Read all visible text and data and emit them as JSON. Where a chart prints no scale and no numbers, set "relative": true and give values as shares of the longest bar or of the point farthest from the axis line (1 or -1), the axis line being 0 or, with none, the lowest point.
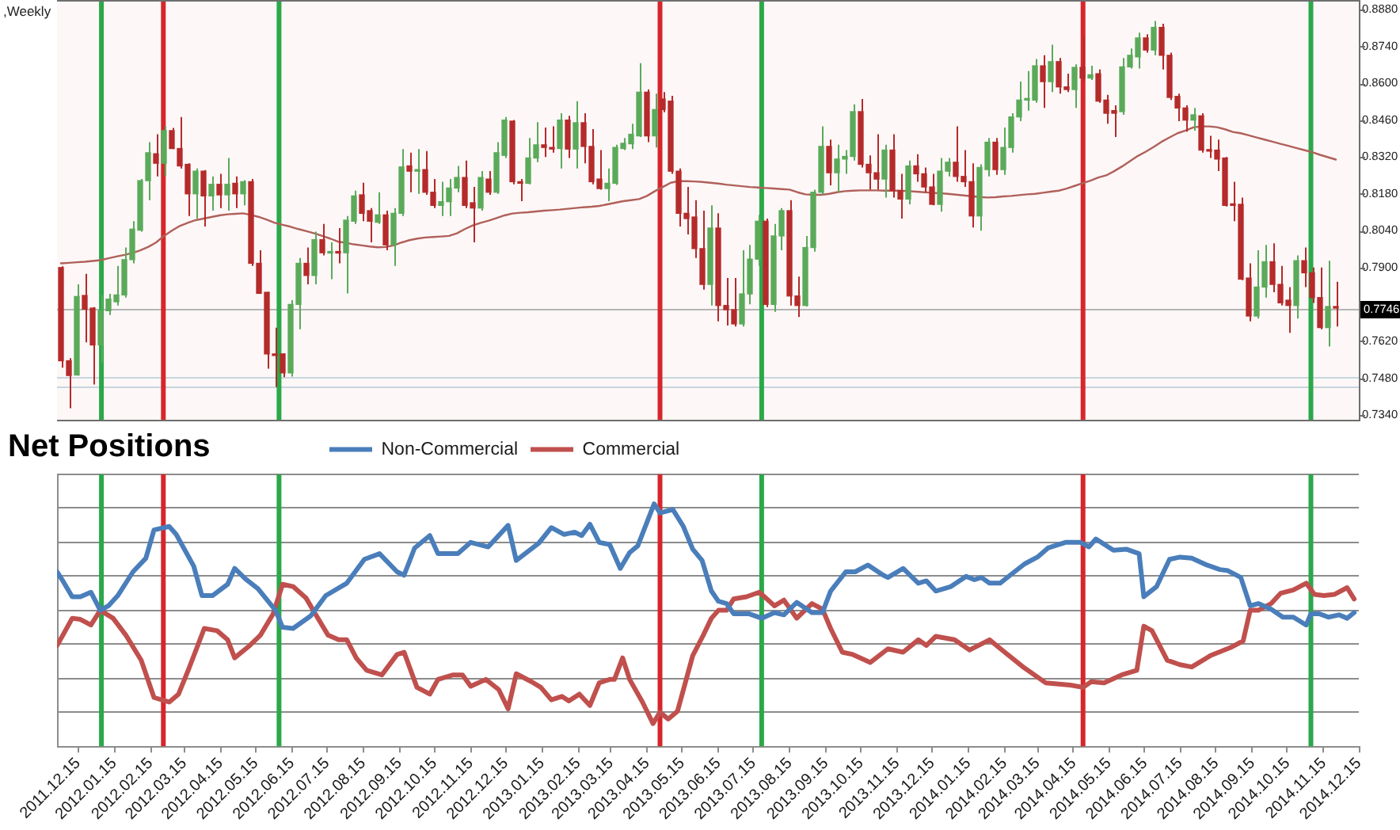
{
  "chart_data": [
    {
      "type": "candlestick",
      "title": ",Weekly",
      "tick_labels": "y",
      "categories": [
        null,
        null,
        null,
        null,
        null,
        null,
        null,
        null,
        null,
        null,
        null,
        null,
        null,
        null,
        null,
        null,
        null,
        null,
        null,
        null,
        null,
        null,
        null,
        null,
        null,
        null,
        null,
        null,
        null,
        null,
        null,
        null,
        null,
        null,
        null,
        null,
        null,
        null,
        null,
        null,
        null,
        null,
        null,
        null,
        null,
        null,
        null,
        null,
        null,
        null,
        null,
        null,
        null,
        null,
        null,
        null,
        null,
        null,
        null,
        null,
        null,
        null,
        null,
        null,
        null,
        null,
        null,
        null,
        null,
        null,
        null,
        null,
        null,
        null,
        null,
        null,
        null,
        null,
        null,
        null,
        null,
        null,
        null,
        null,
        null,
        null,
        null,
        null,
        null,
        null,
        null,
        null,
        null,
        null,
        null,
        null,
        null,
        null,
        null,
        null,
        null,
        null,
        null,
        null,
        null,
        null,
        null,
        null,
        null,
        null,
        null,
        null,
        null,
        null,
        null,
        null,
        null,
        null,
        null,
        null,
        null,
        null,
        null,
        null,
        null,
        null,
        null,
        null,
        null,
        null,
        null,
        null,
        null,
        null,
        null,
        null,
        null,
        null,
        null,
        null,
        null,
        null,
        null,
        null,
        null,
        null,
        null,
        null,
        null,
        null,
        null,
        null,
        null,
        null,
        null,
        null,
        null,
        null,
        null,
        null,
        null,
        null
      ],
      "ohlc": [
        [
          0.79,
          0.7905,
          0.752,
          0.7546
        ],
        [
          0.7546,
          0.7556,
          0.7366,
          0.749
        ],
        [
          0.7492,
          0.7836,
          0.749,
          0.779
        ],
        [
          0.7794,
          0.7876,
          0.7616,
          0.7742
        ],
        [
          0.7746,
          0.775,
          0.7456,
          0.7606
        ],
        [
          0.7606,
          0.7796,
          0.7536,
          0.7736
        ],
        [
          0.7736,
          0.78,
          0.772,
          0.778
        ],
        [
          0.777,
          0.7906,
          0.7756,
          0.7796
        ],
        [
          0.7796,
          0.7976,
          0.7786,
          0.793
        ],
        [
          0.793,
          0.8076,
          0.7916,
          0.8046
        ],
        [
          0.8042,
          0.8236,
          0.8036,
          0.823
        ],
        [
          0.823,
          0.8376,
          0.8156,
          0.8336
        ],
        [
          0.8332,
          0.8406,
          0.8246,
          0.8296
        ],
        [
          0.8296,
          0.8436,
          0.8246,
          0.842
        ],
        [
          0.842,
          0.843,
          0.835,
          0.8352
        ],
        [
          0.8352,
          0.8472,
          0.8276,
          0.8286
        ],
        [
          0.8292,
          0.8296,
          0.8096,
          0.818
        ],
        [
          0.818,
          0.8276,
          0.8086,
          0.8266
        ],
        [
          0.8266,
          0.827,
          0.8056,
          0.8172
        ],
        [
          0.8172,
          0.8246,
          0.8116,
          0.8216
        ],
        [
          0.8216,
          0.8256,
          0.8126,
          0.8176
        ],
        [
          0.8176,
          0.8316,
          0.8116,
          0.8216
        ],
        [
          0.822,
          0.8246,
          0.8126,
          0.818
        ],
        [
          0.818,
          0.8232,
          0.8136,
          0.8226
        ],
        [
          0.8226,
          0.8236,
          0.7906,
          0.7916
        ],
        [
          0.7916,
          0.7966,
          0.78,
          0.7802
        ],
        [
          0.7806,
          0.7808,
          0.7516,
          0.7572
        ],
        [
          0.7572,
          0.7672,
          0.7446,
          0.7566
        ],
        [
          0.7572,
          0.7575,
          0.7484,
          0.75
        ],
        [
          0.75,
          0.7776,
          0.7486,
          0.776
        ],
        [
          0.776,
          0.7936,
          0.7666,
          0.7916
        ],
        [
          0.7916,
          0.7976,
          0.7836,
          0.787
        ],
        [
          0.787,
          0.8036,
          0.7836,
          0.8006
        ],
        [
          0.8006,
          0.8066,
          0.7946,
          0.7956
        ],
        [
          0.7955,
          0.7996,
          0.7856,
          0.7961
        ],
        [
          0.7961,
          0.805,
          0.7916,
          0.7955
        ],
        [
          0.7956,
          0.8096,
          0.7802,
          0.808
        ],
        [
          0.8076,
          0.8192,
          0.8066,
          0.8172
        ],
        [
          0.8176,
          0.8222,
          0.8076,
          0.8106
        ],
        [
          0.8116,
          0.8126,
          0.7996,
          0.8076
        ],
        [
          0.8072,
          0.8186,
          0.8066,
          0.81
        ],
        [
          0.81,
          0.8116,
          0.7966,
          0.7986
        ],
        [
          0.7986,
          0.8126,
          0.7906,
          0.8106
        ],
        [
          0.8106,
          0.835,
          0.8096,
          0.8282
        ],
        [
          0.8286,
          0.8336,
          0.8186,
          0.8266
        ],
        [
          0.8266,
          0.835,
          0.818,
          0.8272
        ],
        [
          0.8272,
          0.8342,
          0.8176,
          0.8186
        ],
        [
          0.8186,
          0.8236,
          0.8126,
          0.8136
        ],
        [
          0.8136,
          0.8226,
          0.8096,
          0.815
        ],
        [
          0.815,
          0.8236,
          0.8096,
          0.8202
        ],
        [
          0.8202,
          0.8286,
          0.8186,
          0.8242
        ],
        [
          0.8242,
          0.8306,
          0.8126,
          0.8136
        ],
        [
          0.8146,
          0.8206,
          0.7996,
          0.8126
        ],
        [
          0.8126,
          0.8266,
          0.8116,
          0.8242
        ],
        [
          0.8236,
          0.8266,
          0.8176,
          0.8186
        ],
        [
          0.8186,
          0.8376,
          0.818,
          0.8336
        ],
        [
          0.8326,
          0.8472,
          0.8316,
          0.846
        ],
        [
          0.8456,
          0.846,
          0.8216,
          0.8226
        ],
        [
          0.8226,
          0.8236,
          0.8152,
          0.822
        ],
        [
          0.822,
          0.8392,
          0.8216,
          0.8316
        ],
        [
          0.8316,
          0.8452,
          0.83,
          0.8366
        ],
        [
          0.8366,
          0.8432,
          0.832,
          0.8356
        ],
        [
          0.8356,
          0.8436,
          0.8336,
          0.835
        ],
        [
          0.8352,
          0.8486,
          0.8276,
          0.846
        ],
        [
          0.846,
          0.8476,
          0.8316,
          0.835
        ],
        [
          0.835,
          0.8532,
          0.8276,
          0.845
        ],
        [
          0.845,
          0.8486,
          0.8296,
          0.836
        ],
        [
          0.836,
          0.8426,
          0.8216,
          0.8226
        ],
        [
          0.8236,
          0.8346,
          0.8196,
          0.82
        ],
        [
          0.82,
          0.8276,
          0.8152,
          0.822
        ],
        [
          0.822,
          0.8366,
          0.8214,
          0.8356
        ],
        [
          0.8352,
          0.8392,
          0.8346,
          0.8372
        ],
        [
          0.837,
          0.8446,
          0.835,
          0.8406
        ],
        [
          0.84,
          0.8676,
          0.8396,
          0.8566
        ],
        [
          0.8566,
          0.8576,
          0.8376,
          0.84
        ],
        [
          0.84,
          0.856,
          0.8356,
          0.85
        ],
        [
          0.854,
          0.8566,
          0.849,
          0.85
        ],
        [
          0.8532,
          0.8552,
          0.8256,
          0.8266
        ],
        [
          0.8266,
          0.8276,
          0.8056,
          0.8106
        ],
        [
          0.8106,
          0.8206,
          0.8026,
          0.8086
        ],
        [
          0.8092,
          0.8156,
          0.7936,
          0.7972
        ],
        [
          0.7972,
          0.8116,
          0.7816,
          0.7836
        ],
        [
          0.7836,
          0.8136,
          0.7756,
          0.805
        ],
        [
          0.805,
          0.8106,
          0.7696,
          0.7756
        ],
        [
          0.7756,
          0.786,
          0.768,
          0.774
        ],
        [
          0.774,
          0.786,
          0.7676,
          0.7686
        ],
        [
          0.7686,
          0.7966,
          0.7676,
          0.78
        ],
        [
          0.78,
          0.7986,
          0.776,
          0.7932
        ],
        [
          0.7932,
          0.81,
          0.7906,
          0.8076
        ],
        [
          0.8076,
          0.8086,
          0.775,
          0.776
        ],
        [
          0.776,
          0.8066,
          0.7732,
          0.802
        ],
        [
          0.802,
          0.8126,
          0.7966,
          0.8116
        ],
        [
          0.8116,
          0.8156,
          0.7756,
          0.7792
        ],
        [
          0.7792,
          0.7866,
          0.7712,
          0.7756
        ],
        [
          0.7756,
          0.802,
          0.7752,
          0.7976
        ],
        [
          0.7976,
          0.8196,
          0.796,
          0.8186
        ],
        [
          0.8186,
          0.8436,
          0.8176,
          0.836
        ],
        [
          0.836,
          0.8386,
          0.8212,
          0.826
        ],
        [
          0.826,
          0.8366,
          0.8186,
          0.8312
        ],
        [
          0.8312,
          0.8346,
          0.8256,
          0.8322
        ],
        [
          0.8322,
          0.852,
          0.8306,
          0.8492
        ],
        [
          0.8492,
          0.854,
          0.828,
          0.8292
        ],
        [
          0.8292,
          0.8326,
          0.8196,
          0.826
        ],
        [
          0.826,
          0.8406,
          0.8196,
          0.8236
        ],
        [
          0.8236,
          0.8366,
          0.8166,
          0.8346
        ],
        [
          0.8346,
          0.8406,
          0.8166,
          0.8192
        ],
        [
          0.8192,
          0.8256,
          0.8086,
          0.816
        ],
        [
          0.816,
          0.8306,
          0.814,
          0.8286
        ],
        [
          0.8286,
          0.833,
          0.8226,
          0.8256
        ],
        [
          0.8256,
          0.828,
          0.8186,
          0.8206
        ],
        [
          0.8206,
          0.8256,
          0.8136,
          0.814
        ],
        [
          0.814,
          0.8316,
          0.8112,
          0.8266
        ],
        [
          0.8266,
          0.8316,
          0.8246,
          0.83
        ],
        [
          0.83,
          0.8436,
          0.8226,
          0.8246
        ],
        [
          0.8246,
          0.8346,
          0.8206,
          0.8226
        ],
        [
          0.8226,
          0.8296,
          0.8052,
          0.8096
        ],
        [
          0.8096,
          0.8292,
          0.804,
          0.828
        ],
        [
          0.8272,
          0.8392,
          0.8246,
          0.8376
        ],
        [
          0.8376,
          0.8392,
          0.8252,
          0.8272
        ],
        [
          0.8272,
          0.8432,
          0.8252,
          0.8356
        ],
        [
          0.8356,
          0.8486,
          0.8336,
          0.8472
        ],
        [
          0.8472,
          0.8606,
          0.8456,
          0.8536
        ],
        [
          0.8536,
          0.8646,
          0.8496,
          0.8542
        ],
        [
          0.8536,
          0.8692,
          0.8526,
          0.8666
        ],
        [
          0.8666,
          0.8706,
          0.8506,
          0.8606
        ],
        [
          0.8606,
          0.8746,
          0.8566,
          0.8682
        ],
        [
          0.8682,
          0.8696,
          0.856,
          0.8586
        ],
        [
          0.8586,
          0.8636,
          0.8566,
          0.8576
        ],
        [
          0.8576,
          0.8672,
          0.8506,
          0.866
        ],
        [
          0.866,
          0.8776,
          0.8606,
          0.862
        ],
        [
          0.862,
          0.8666,
          0.8612,
          0.8632
        ],
        [
          0.8636,
          0.8652,
          0.8526,
          0.8532
        ],
        [
          0.8536,
          0.8556,
          0.8446,
          0.8486
        ],
        [
          0.8496,
          0.8516,
          0.8396,
          0.8486
        ],
        [
          0.8492,
          0.8696,
          0.848,
          0.8662
        ],
        [
          0.8662,
          0.8732,
          0.8656,
          0.8706
        ],
        [
          0.87,
          0.8792,
          0.8656,
          0.8772
        ],
        [
          0.8772,
          0.8786,
          0.8716,
          0.8726
        ],
        [
          0.8726,
          0.8836,
          0.8706,
          0.8812
        ],
        [
          0.8812,
          0.8826,
          0.8652,
          0.8706
        ],
        [
          0.8706,
          0.8716,
          0.8536,
          0.8546
        ],
        [
          0.855,
          0.856,
          0.8456,
          0.8506
        ],
        [
          0.8506,
          0.8516,
          0.8416,
          0.846
        ],
        [
          0.846,
          0.8506,
          0.842,
          0.848
        ],
        [
          0.8476,
          0.8486,
          0.8336,
          0.8346
        ],
        [
          0.8348,
          0.84,
          0.8316,
          0.8342
        ],
        [
          0.8346,
          0.8386,
          0.8266,
          0.8312
        ],
        [
          0.8316,
          0.832,
          0.8132,
          0.8136
        ],
        [
          0.8142,
          0.8226,
          0.8076,
          0.8136
        ],
        [
          0.814,
          0.8166,
          0.7852,
          0.7856
        ],
        [
          0.786,
          0.7916,
          0.7696,
          0.7716
        ],
        [
          0.7716,
          0.7966,
          0.7706,
          0.7826
        ],
        [
          0.7826,
          0.7986,
          0.7786,
          0.7922
        ],
        [
          0.7922,
          0.7992,
          0.7806,
          0.7836
        ],
        [
          0.7836,
          0.7906,
          0.7756,
          0.7766
        ],
        [
          0.7776,
          0.7826,
          0.7652,
          0.7756
        ],
        [
          0.7756,
          0.7946,
          0.7706,
          0.7926
        ],
        [
          0.7926,
          0.7976,
          0.7826,
          0.788
        ],
        [
          0.788,
          0.79,
          0.7766,
          0.7786
        ],
        [
          0.7786,
          0.79,
          0.7666,
          0.7672
        ],
        [
          0.7672,
          0.7926,
          0.76,
          0.7752
        ],
        [
          0.7752,
          0.7846,
          0.7676,
          0.7746
        ]
      ],
      "colors": [
        "#b52a2a",
        "#b52a2a",
        "#5aaa5a",
        "#b52a2a",
        "#b52a2a",
        "#5aaa5a",
        "#5aaa5a",
        "#5aaa5a",
        "#5aaa5a",
        "#5aaa5a",
        "#5aaa5a",
        "#5aaa5a",
        "#b52a2a",
        "#5aaa5a",
        "#b52a2a",
        "#b52a2a",
        "#b52a2a",
        "#5aaa5a",
        "#b52a2a",
        "#5aaa5a",
        "#b52a2a",
        "#5aaa5a",
        "#b52a2a",
        "#5aaa5a",
        "#b52a2a",
        "#b52a2a",
        "#b52a2a",
        "#b52a2a",
        "#b52a2a",
        "#5aaa5a",
        "#5aaa5a",
        "#b52a2a",
        "#5aaa5a",
        "#b52a2a",
        "#5aaa5a",
        "#b52a2a",
        "#5aaa5a",
        "#5aaa5a",
        "#b52a2a",
        "#b52a2a",
        "#5aaa5a",
        "#b52a2a",
        "#5aaa5a",
        "#5aaa5a",
        "#b52a2a",
        "#5aaa5a",
        "#b52a2a",
        "#b52a2a",
        "#5aaa5a",
        "#5aaa5a",
        "#5aaa5a",
        "#b52a2a",
        "#b52a2a",
        "#5aaa5a",
        "#b52a2a",
        "#5aaa5a",
        "#5aaa5a",
        "#b52a2a",
        "#b52a2a",
        "#5aaa5a",
        "#5aaa5a",
        "#b52a2a",
        "#b52a2a",
        "#5aaa5a",
        "#b52a2a",
        "#5aaa5a",
        "#b52a2a",
        "#b52a2a",
        "#b52a2a",
        "#5aaa5a",
        "#5aaa5a",
        "#5aaa5a",
        "#5aaa5a",
        "#5aaa5a",
        "#b52a2a",
        "#5aaa5a",
        "#b52a2a",
        "#b52a2a",
        "#b52a2a",
        "#b52a2a",
        "#b52a2a",
        "#b52a2a",
        "#5aaa5a",
        "#b52a2a",
        "#b52a2a",
        "#b52a2a",
        "#5aaa5a",
        "#5aaa5a",
        "#5aaa5a",
        "#b52a2a",
        "#5aaa5a",
        "#5aaa5a",
        "#b52a2a",
        "#b52a2a",
        "#5aaa5a",
        "#5aaa5a",
        "#5aaa5a",
        "#b52a2a",
        "#5aaa5a",
        "#5aaa5a",
        "#5aaa5a",
        "#b52a2a",
        "#b52a2a",
        "#b52a2a",
        "#5aaa5a",
        "#b52a2a",
        "#b52a2a",
        "#5aaa5a",
        "#b52a2a",
        "#b52a2a",
        "#b52a2a",
        "#5aaa5a",
        "#5aaa5a",
        "#b52a2a",
        "#b52a2a",
        "#b52a2a",
        "#5aaa5a",
        "#5aaa5a",
        "#b52a2a",
        "#5aaa5a",
        "#5aaa5a",
        "#5aaa5a",
        "#5aaa5a",
        "#5aaa5a",
        "#b52a2a",
        "#5aaa5a",
        "#b52a2a",
        "#b52a2a",
        "#5aaa5a",
        "#b52a2a",
        "#5aaa5a",
        "#b52a2a",
        "#b52a2a",
        "#b52a2a",
        "#5aaa5a",
        "#5aaa5a",
        "#5aaa5a",
        "#b52a2a",
        "#5aaa5a",
        "#b52a2a",
        "#b52a2a",
        "#b52a2a",
        "#b52a2a",
        "#5aaa5a",
        "#b52a2a",
        "#b52a2a",
        "#b52a2a",
        "#b52a2a",
        "#b52a2a",
        "#b52a2a",
        "#b52a2a",
        "#5aaa5a",
        "#5aaa5a",
        "#b52a2a",
        "#b52a2a",
        "#b52a2a",
        "#5aaa5a",
        "#b52a2a",
        "#b52a2a",
        "#b52a2a",
        "#5aaa5a",
        "#b52a2a"
      ],
      "series": [
        {
          "type": "line",
          "color": "#b0605a",
          "values": [
            0.7916,
            0.7918,
            0.792,
            0.7922,
            0.7925,
            0.7928,
            0.7935,
            0.7942,
            0.7948,
            0.7955,
            0.7965,
            0.7978,
            0.7995,
            0.802,
            0.804,
            0.8058,
            0.807,
            0.808,
            0.8086,
            0.8092,
            0.8098,
            0.8102,
            0.8104,
            0.8106,
            0.81,
            0.8092,
            0.8082,
            0.807,
            0.8062,
            0.8055,
            0.8046,
            0.8038,
            0.803,
            0.802,
            0.801,
            0.7998,
            0.7994,
            0.7988,
            0.7984,
            0.798,
            0.7977,
            0.7978,
            0.7984,
            0.7995,
            0.8004,
            0.801,
            0.8014,
            0.8016,
            0.8018,
            0.802,
            0.803,
            0.8046,
            0.806,
            0.807,
            0.8078,
            0.8088,
            0.8098,
            0.8105,
            0.8108,
            0.811,
            0.8113,
            0.8116,
            0.8118,
            0.812,
            0.8123,
            0.8126,
            0.8129,
            0.8131,
            0.8134,
            0.814,
            0.8146,
            0.8152,
            0.8156,
            0.816,
            0.8172,
            0.819,
            0.8206,
            0.8222,
            0.8228,
            0.8228,
            0.8227,
            0.8225,
            0.8222,
            0.8219,
            0.8215,
            0.8212,
            0.8209,
            0.8206,
            0.8204,
            0.8202,
            0.82,
            0.8198,
            0.8196,
            0.8186,
            0.8178,
            0.8176,
            0.8176,
            0.818,
            0.8186,
            0.819,
            0.8192,
            0.8193,
            0.8193,
            0.8193,
            0.8192,
            0.8192,
            0.8192,
            0.819,
            0.8188,
            0.8186,
            0.8184,
            0.8182,
            0.818,
            0.8177,
            0.8174,
            0.8171,
            0.8168,
            0.8166,
            0.8167,
            0.817,
            0.8172,
            0.8175,
            0.8178,
            0.818,
            0.8184,
            0.8188,
            0.8192,
            0.82,
            0.821,
            0.822,
            0.823,
            0.8242,
            0.825,
            0.8266,
            0.8284,
            0.8304,
            0.8324,
            0.834,
            0.8358,
            0.8378,
            0.8394,
            0.841,
            0.842,
            0.8432,
            0.8436,
            0.8436,
            0.8433,
            0.8425,
            0.8415,
            0.841,
            0.8402,
            0.8394,
            0.8386,
            0.8378,
            0.837,
            0.8362,
            0.8354,
            0.8346,
            0.8338,
            0.8328,
            0.8319,
            0.831
          ]
        }
      ],
      "ylim": [
        0.7316,
        0.8916
      ],
      "yticks": [
        {
          "value": 0.888,
          "label": "0.8880"
        },
        {
          "value": 0.874,
          "label": "0.8740"
        },
        {
          "value": 0.86,
          "label": "0.8600"
        },
        {
          "value": 0.846,
          "label": "0.8460"
        },
        {
          "value": 0.832,
          "label": "0.8320"
        },
        {
          "value": 0.818,
          "label": "0.8180"
        },
        {
          "value": 0.804,
          "label": "0.8040"
        },
        {
          "value": 0.79,
          "label": "0.7900"
        },
        {
          "value": 0.762,
          "label": "0.7620"
        },
        {
          "value": 0.748,
          "label": "0.7480"
        },
        {
          "value": 0.734,
          "label": "0.7340"
        }
      ],
      "ref_lines": [
        {
          "axis": "y",
          "value": 0.7746,
          "label": "0.7746",
          "color": "#b4b4b4"
        },
        {
          "axis": "y",
          "value": 0.7484,
          "color": "#c6d6de"
        },
        {
          "axis": "y",
          "value": 0.745,
          "color": "#c6d6de"
        }
      ]
    },
    {
      "type": "line",
      "title": "Net Positions",
      "relative": true,
      "tick_labels": "x",
      "grid": "y",
      "legend": "top",
      "xlim": [
        "2011-11-27",
        "2014-12-15"
      ],
      "xticks": [
        {
          "value": "2011-12-15",
          "label": "2011.12.15"
        },
        {
          "value": "2012-01-15",
          "label": "2012.01.15"
        },
        {
          "value": "2012-02-15",
          "label": "2012.02.15"
        },
        {
          "value": "2012-03-15",
          "label": "2012.03.15"
        },
        {
          "value": "2012-04-15",
          "label": "2012.04.15"
        },
        {
          "value": "2012-05-15",
          "label": "2012.05.15"
        },
        {
          "value": "2012-06-15",
          "label": "2012.06.15"
        },
        {
          "value": "2012-07-15",
          "label": "2012.07.15"
        },
        {
          "value": "2012-08-15",
          "label": "2012.08.15"
        },
        {
          "value": "2012-09-15",
          "label": "2012.09.15"
        },
        {
          "value": "2012-10-15",
          "label": "2012.10.15"
        },
        {
          "value": "2012-11-15",
          "label": "2012.11.15"
        },
        {
          "value": "2012-12-15",
          "label": "2012.12.15"
        },
        {
          "value": "2013-01-15",
          "label": "2013.01.15"
        },
        {
          "value": "2013-02-15",
          "label": "2013.02.15"
        },
        {
          "value": "2013-03-15",
          "label": "2013.03.15"
        },
        {
          "value": "2013-04-15",
          "label": "2013.04.15"
        },
        {
          "value": "2013-05-15",
          "label": "2013.05.15"
        },
        {
          "value": "2013-06-15",
          "label": "2013.06.15"
        },
        {
          "value": "2013-07-15",
          "label": "2013.07.15"
        },
        {
          "value": "2013-08-15",
          "label": "2013.08.15"
        },
        {
          "value": "2013-09-15",
          "label": "2013.09.15"
        },
        {
          "value": "2013-10-15",
          "label": "2013.10.15"
        },
        {
          "value": "2013-11-15",
          "label": "2013.11.15"
        },
        {
          "value": "2013-12-15",
          "label": "2013.12.15"
        },
        {
          "value": "2014-01-15",
          "label": "2014.01.15"
        },
        {
          "value": "2014-02-15",
          "label": "2014.02.15"
        },
        {
          "value": "2014-03-15",
          "label": "2014.03.15"
        },
        {
          "value": "2014-04-15",
          "label": "2014.04.15"
        },
        {
          "value": "2014-05-15",
          "label": "2014.05.15"
        },
        {
          "value": "2014-06-15",
          "label": "2014.06.15"
        },
        {
          "value": "2014-07-15",
          "label": "2014.07.15"
        },
        {
          "value": "2014-08-15",
          "label": "2014.08.15"
        },
        {
          "value": "2014-09-15",
          "label": "2014.09.15"
        },
        {
          "value": "2014-10-15",
          "label": "2014.10.15"
        },
        {
          "value": "2014-11-15",
          "label": "2014.11.15"
        },
        {
          "value": "2014-12-15",
          "label": "2014.12.15"
        }
      ],
      "series": [
        {
          "name": "Non-Commercial",
          "color": "#4a7ebb",
          "x": [
            "2011-11-27",
            "2011-12-02",
            "2011-12-10",
            "2011-12-17",
            "2011-12-26",
            "2012-01-03",
            "2012-01-10",
            "2012-01-18",
            "2012-01-31",
            "2012-02-11",
            "2012-02-18",
            "2012-03-02",
            "2012-03-08",
            "2012-03-23",
            "2012-03-30",
            "2012-04-08",
            "2012-04-21",
            "2012-04-27",
            "2012-05-06",
            "2012-05-17",
            "2012-06-01",
            "2012-06-07",
            "2012-06-16",
            "2012-07-01",
            "2012-07-14",
            "2012-08-01",
            "2012-08-16",
            "2012-08-29",
            "2012-09-13",
            "2012-09-19",
            "2012-09-28",
            "2012-10-11",
            "2012-10-18",
            "2012-11-04",
            "2012-11-15",
            "2012-11-30",
            "2012-12-17",
            "2012-12-24",
            "2013-01-12",
            "2013-01-23",
            "2013-02-03",
            "2013-02-12",
            "2013-02-18",
            "2013-02-25",
            "2013-03-05",
            "2013-03-14",
            "2013-03-23",
            "2013-03-31",
            "2013-04-07",
            "2013-04-21",
            "2013-04-26",
            "2013-05-07",
            "2013-05-16",
            "2013-05-24",
            "2013-06-01",
            "2013-06-09",
            "2013-06-15",
            "2013-06-22",
            "2013-06-28",
            "2013-07-11",
            "2013-07-22",
            "2013-08-02",
            "2013-08-10",
            "2013-08-21",
            "2013-09-03",
            "2013-09-12",
            "2013-09-19",
            "2013-10-02",
            "2013-10-10",
            "2013-10-21",
            "2013-11-03",
            "2013-11-07",
            "2013-11-20",
            "2013-12-03",
            "2013-12-10",
            "2013-12-18",
            "2013-12-31",
            "2014-01-13",
            "2014-01-20",
            "2014-01-26",
            "2014-02-02",
            "2014-02-11",
            "2014-03-04",
            "2014-03-15",
            "2014-03-24",
            "2014-04-02",
            "2014-04-08",
            "2014-04-21",
            "2014-04-28",
            "2014-05-04",
            "2014-05-19",
            "2014-05-30",
            "2014-06-10",
            "2014-06-14",
            "2014-06-25",
            "2014-07-06",
            "2014-07-15",
            "2014-07-25",
            "2014-08-07",
            "2014-08-18",
            "2014-08-25",
            "2014-09-05",
            "2014-09-13",
            "2014-09-20",
            "2014-10-01",
            "2014-10-11",
            "2014-10-20",
            "2014-10-31",
            "2014-11-04",
            "2014-11-11",
            "2014-11-19",
            "2014-11-28",
            "2014-12-05",
            "2014-12-11"
          ],
          "values": [
            0.34,
            0.26,
            0.12,
            0.12,
            0.16,
            0,
            0.04,
            0.13,
            0.34,
            0.46,
            0.71,
            0.74,
            0.67,
            0.39,
            0.13,
            0.13,
            0.23,
            0.37,
            0.28,
            0.19,
            0,
            -0.15,
            -0.16,
            -0.05,
            0.13,
            0.24,
            0.45,
            0.5,
            0.34,
            0.31,
            0.55,
            0.66,
            0.5,
            0.5,
            0.6,
            0.56,
            0.75,
            0.44,
            0.59,
            0.73,
            0.67,
            0.69,
            0.66,
            0.76,
            0.6,
            0.58,
            0.37,
            0.51,
            0.57,
            0.94,
            0.86,
            0.89,
            0.74,
            0.54,
            0.44,
            0.17,
            0.08,
            0.06,
            -0.03,
            -0.03,
            -0.07,
            -0.02,
            -0.04,
            0.07,
            -0.02,
            -0.02,
            0.17,
            0.34,
            0.34,
            0.4,
            0.31,
            0.29,
            0.37,
            0.24,
            0.26,
            0.17,
            0.21,
            0.3,
            0.27,
            0.29,
            0.24,
            0.24,
            0.41,
            0.47,
            0.55,
            0.58,
            0.6,
            0.6,
            0.56,
            0.63,
            0.53,
            0.54,
            0.5,
            0.12,
            0.21,
            0.45,
            0.47,
            0.46,
            0.4,
            0.36,
            0.35,
            0.29,
            0.04,
            0.06,
            0.01,
            -0.06,
            -0.06,
            -0.13,
            -0.03,
            -0.03,
            -0.06,
            -0.04,
            -0.07,
            -0.02
          ]
        },
        {
          "name": "Commercial",
          "color": "#c0504d",
          "x": [
            "2011-11-27",
            "2011-12-02",
            "2011-12-10",
            "2011-12-17",
            "2011-12-26",
            "2012-01-03",
            "2012-01-14",
            "2012-01-25",
            "2012-02-07",
            "2012-02-18",
            "2012-03-02",
            "2012-03-10",
            "2012-03-19",
            "2012-04-01",
            "2012-04-12",
            "2012-04-21",
            "2012-04-27",
            "2012-05-10",
            "2012-05-19",
            "2012-05-30",
            "2012-06-07",
            "2012-06-16",
            "2012-06-27",
            "2012-07-05",
            "2012-07-16",
            "2012-07-25",
            "2012-08-01",
            "2012-08-09",
            "2012-08-18",
            "2012-08-31",
            "2012-09-13",
            "2012-09-19",
            "2012-09-30",
            "2012-10-11",
            "2012-10-18",
            "2012-10-31",
            "2012-11-08",
            "2012-11-15",
            "2012-11-28",
            "2012-12-09",
            "2012-12-17",
            "2012-12-24",
            "2013-01-06",
            "2013-01-14",
            "2013-01-23",
            "2013-02-01",
            "2013-02-07",
            "2013-02-16",
            "2013-02-25",
            "2013-03-05",
            "2013-03-14",
            "2013-03-18",
            "2013-03-25",
            "2013-03-31",
            "2013-04-11",
            "2013-04-20",
            "2013-04-26",
            "2013-05-03",
            "2013-05-11",
            "2013-05-24",
            "2013-06-02",
            "2013-06-09",
            "2013-06-15",
            "2013-06-22",
            "2013-06-28",
            "2013-07-09",
            "2013-07-20",
            "2013-08-02",
            "2013-08-10",
            "2013-08-21",
            "2013-09-03",
            "2013-09-12",
            "2013-09-19",
            "2013-09-29",
            "2013-10-08",
            "2013-10-23",
            "2013-11-07",
            "2013-11-20",
            "2013-12-03",
            "2013-12-10",
            "2013-12-18",
            "2014-01-03",
            "2014-01-16",
            "2014-02-02",
            "2014-02-15",
            "2014-03-04",
            "2014-03-22",
            "2014-04-12",
            "2014-04-23",
            "2014-04-30",
            "2014-05-11",
            "2014-05-26",
            "2014-06-08",
            "2014-06-14",
            "2014-06-21",
            "2014-07-04",
            "2014-07-15",
            "2014-07-25",
            "2014-08-10",
            "2014-08-27",
            "2014-09-07",
            "2014-09-13",
            "2014-09-20",
            "2014-10-01",
            "2014-10-09",
            "2014-10-20",
            "2014-10-31",
            "2014-11-07",
            "2014-11-15",
            "2014-11-24",
            "2014-12-05",
            "2014-12-11"
          ],
          "values": [
            -0.31,
            -0.22,
            -0.07,
            -0.08,
            -0.13,
            0,
            -0.07,
            -0.22,
            -0.44,
            -0.77,
            -0.81,
            -0.74,
            -0.51,
            -0.16,
            -0.18,
            -0.26,
            -0.42,
            -0.31,
            -0.22,
            -0.03,
            0.23,
            0.21,
            0.11,
            -0.03,
            -0.22,
            -0.26,
            -0.26,
            -0.42,
            -0.53,
            -0.57,
            -0.39,
            -0.37,
            -0.68,
            -0.74,
            -0.61,
            -0.57,
            -0.57,
            -0.67,
            -0.61,
            -0.7,
            -0.87,
            -0.56,
            -0.63,
            -0.68,
            -0.79,
            -0.76,
            -0.8,
            -0.74,
            -0.84,
            -0.64,
            -0.61,
            -0.61,
            -0.42,
            -0.61,
            -0.81,
            -1,
            -0.9,
            -0.96,
            -0.89,
            -0.4,
            -0.22,
            -0.07,
            0,
            0,
            0.1,
            0.12,
            0.16,
            0.04,
            0.09,
            -0.07,
            0.06,
            0.01,
            -0.16,
            -0.37,
            -0.39,
            -0.46,
            -0.34,
            -0.37,
            -0.26,
            -0.31,
            -0.23,
            -0.26,
            -0.35,
            -0.26,
            -0.37,
            -0.51,
            -0.64,
            -0.66,
            -0.68,
            -0.63,
            -0.64,
            -0.57,
            -0.53,
            -0.14,
            -0.18,
            -0.44,
            -0.48,
            -0.5,
            -0.4,
            -0.33,
            -0.27,
            0,
            0,
            0.06,
            0.15,
            0.18,
            0.24,
            0.14,
            0.13,
            0.14,
            0.2,
            0.1
          ]
        }
      ],
      "ref_lines": [
        {
          "axis": "x",
          "value": "2012-01-04",
          "color": "#2ba84a"
        },
        {
          "axis": "x",
          "value": "2012-02-26",
          "color": "#d7262b"
        },
        {
          "axis": "x",
          "value": "2012-06-04",
          "color": "#2ba84a"
        },
        {
          "axis": "x",
          "value": "2013-04-26",
          "color": "#d7262b"
        },
        {
          "axis": "x",
          "value": "2013-07-22",
          "color": "#2ba84a"
        },
        {
          "axis": "x",
          "value": "2014-04-23",
          "color": "#d7262b"
        },
        {
          "axis": "x",
          "value": "2014-11-04",
          "color": "#2ba84a"
        }
      ]
    }
  ]
}
